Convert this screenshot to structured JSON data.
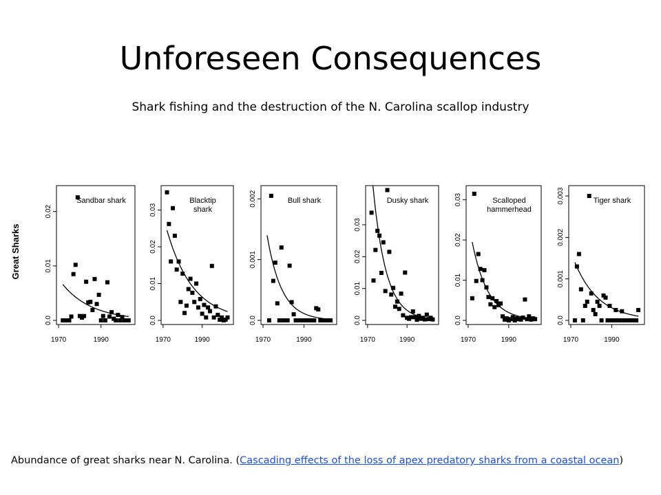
{
  "slide": {
    "title": "Unforeseen Consequences",
    "subtitle": "Shark fishing and the destruction of the N. Carolina scallop industry"
  },
  "caption": {
    "text": "Abundance of great sharks near N. Carolina. (",
    "link_text": "Cascading effects of the loss of apex predatory sharks from a coastal ocean",
    "close": ")"
  },
  "colors": {
    "link": "#1f4fd6",
    "points": "#000000"
  },
  "chart_data": {
    "type": "scatter",
    "ylabel": "Great Sharks",
    "x_ticks": [
      1970,
      1990
    ],
    "xlim": [
      1969,
      2006
    ],
    "panels": [
      {
        "name": "Sandbar shark",
        "name_lines": [
          "Sandbar shark"
        ],
        "ylim": [
          0,
          0.024
        ],
        "y_ticks": [
          0.0,
          0.01,
          0.02
        ],
        "y_tick_labels": [
          "0.0",
          "0.01",
          "0.02"
        ],
        "x": [
          1972,
          1973,
          1974,
          1975,
          1976,
          1977,
          1978,
          1979,
          1980,
          1981,
          1982,
          1983,
          1984,
          1985,
          1986,
          1987,
          1988,
          1989,
          1990,
          1991,
          1992,
          1993,
          1994,
          1995,
          1996,
          1997,
          1998,
          1999,
          2000,
          2001,
          2002,
          2003
        ],
        "y": [
          0.0,
          0.0,
          0.0,
          0.0,
          0.0007,
          0.0085,
          0.0102,
          0.0226,
          0.0008,
          0.0005,
          0.0008,
          0.0071,
          0.0033,
          0.0034,
          0.0019,
          0.0076,
          0.003,
          0.0047,
          0.0,
          0.0008,
          0.0,
          0.007,
          0.0007,
          0.0015,
          0.0003,
          0.0,
          0.001,
          0.0,
          0.0006,
          0.0,
          0.0,
          0.0
        ],
        "fit": {
          "a": 0.0066,
          "b": 0.072
        }
      },
      {
        "name": "Blacktip shark",
        "name_lines": [
          "Blacktip",
          "shark"
        ],
        "ylim": [
          0,
          0.0355
        ],
        "y_ticks": [
          0.0,
          0.01,
          0.02,
          0.03
        ],
        "y_tick_labels": [
          "0.0",
          "0.01",
          "0.02",
          "0.03"
        ],
        "x": [
          1972,
          1973,
          1974,
          1975,
          1976,
          1977,
          1978,
          1979,
          1980,
          1981,
          1982,
          1983,
          1984,
          1985,
          1986,
          1987,
          1988,
          1989,
          1990,
          1991,
          1992,
          1993,
          1994,
          1995,
          1996,
          1997,
          1998,
          1999,
          2000,
          2001,
          2002,
          2003
        ],
        "y": [
          0.0348,
          0.0262,
          0.016,
          0.0305,
          0.023,
          0.0138,
          0.016,
          0.005,
          0.0127,
          0.002,
          0.004,
          0.0085,
          0.0113,
          0.0075,
          0.005,
          0.01,
          0.0035,
          0.0058,
          0.0018,
          0.0042,
          0.0008,
          0.0035,
          0.0025,
          0.0148,
          0.0008,
          0.0038,
          0.0015,
          0.0002,
          0.0008,
          0.0,
          0.0002,
          0.0008
        ],
        "fit": {
          "a": 0.0245,
          "b": 0.075
        }
      },
      {
        "name": "Bull shark",
        "name_lines": [
          "Bull shark"
        ],
        "ylim": [
          0,
          0.00215
        ],
        "y_ticks": [
          0.0,
          0.001,
          0.002
        ],
        "y_tick_labels": [
          "0.0",
          "0.001",
          "0.002"
        ],
        "x": [
          1973,
          1974,
          1975,
          1976,
          1977,
          1978,
          1979,
          1980,
          1981,
          1982,
          1983,
          1984,
          1985,
          1986,
          1987,
          1988,
          1989,
          1990,
          1991,
          1992,
          1993,
          1994,
          1995,
          1996,
          1997,
          1998,
          1999,
          2000,
          2001,
          2002,
          2003
        ],
        "y": [
          0.0,
          0.00205,
          0.00065,
          0.00095,
          0.00028,
          0.0,
          0.0012,
          0.0,
          0.0,
          0.0,
          0.0009,
          0.0003,
          0.0001,
          0.0,
          0.0,
          0.0,
          0.0,
          0.0,
          0.0,
          0.0,
          0.0,
          0.0,
          0.0,
          0.0002,
          0.00018,
          0.0,
          0.0,
          0.0,
          0.0,
          0.0,
          0.0
        ],
        "fit": {
          "a": 0.0014,
          "b": 0.14
        }
      },
      {
        "name": "Dusky shark",
        "name_lines": [
          "Dusky shark"
        ],
        "ylim": [
          0,
          0.041
        ],
        "y_ticks": [
          0.0,
          0.01,
          0.02,
          0.03
        ],
        "y_tick_labels": [
          "0.0",
          "0.01",
          "0.02",
          "0.03"
        ],
        "x": [
          1972,
          1973,
          1974,
          1975,
          1976,
          1977,
          1978,
          1979,
          1980,
          1981,
          1982,
          1983,
          1984,
          1985,
          1986,
          1987,
          1988,
          1989,
          1990,
          1991,
          1992,
          1993,
          1994,
          1995,
          1996,
          1997,
          1998,
          1999,
          2000,
          2001,
          2002,
          2003
        ],
        "y": [
          0.0338,
          0.0125,
          0.0221,
          0.0281,
          0.0266,
          0.0149,
          0.0245,
          0.0092,
          0.0409,
          0.0215,
          0.0081,
          0.0102,
          0.0043,
          0.0059,
          0.0036,
          0.0084,
          0.0016,
          0.015,
          0.0008,
          0.0005,
          0.001,
          0.0028,
          0.001,
          0.0002,
          0.0014,
          0.0005,
          0.0008,
          0.0003,
          0.0018,
          0.0004,
          0.0008,
          0.0003
        ],
        "fit": {
          "a": 0.047,
          "b": 0.15
        }
      },
      {
        "name": "Scalloped hammerhead",
        "name_lines": [
          "Scalloped",
          "hammerhead"
        ],
        "ylim": [
          0,
          0.0325
        ],
        "y_ticks": [
          0.0,
          0.01,
          0.02,
          0.03
        ],
        "y_tick_labels": [
          "0.0",
          "0.01",
          "0.02",
          "0.03"
        ],
        "x": [
          1972,
          1973,
          1974,
          1975,
          1976,
          1977,
          1978,
          1979,
          1980,
          1981,
          1982,
          1983,
          1984,
          1985,
          1986,
          1987,
          1988,
          1989,
          1990,
          1991,
          1992,
          1993,
          1994,
          1995,
          1996,
          1997,
          1998,
          1999,
          2000,
          2001,
          2002,
          2003
        ],
        "y": [
          0.0055,
          0.0315,
          0.0098,
          0.0165,
          0.0128,
          0.01,
          0.0125,
          0.0082,
          0.0058,
          0.004,
          0.0055,
          0.0033,
          0.0048,
          0.0038,
          0.0042,
          0.001,
          0.0002,
          0.0005,
          0.0,
          0.0003,
          0.0008,
          0.0,
          0.0005,
          0.0003,
          0.0002,
          0.0007,
          0.0052,
          0.0003,
          0.001,
          0.0002,
          0.0005,
          0.0003
        ],
        "fit": {
          "a": 0.0195,
          "b": 0.128
        }
      },
      {
        "name": "Tiger shark",
        "name_lines": [
          "Tiger shark"
        ],
        "ylim": [
          0,
          0.00315
        ],
        "y_ticks": [
          0.0,
          0.001,
          0.002,
          0.003
        ],
        "y_tick_labels": [
          "0.0",
          "0.001",
          "0.002",
          "0.003"
        ],
        "x": [
          1972,
          1973,
          1974,
          1975,
          1976,
          1977,
          1978,
          1979,
          1980,
          1981,
          1982,
          1983,
          1984,
          1985,
          1986,
          1987,
          1988,
          1989,
          1990,
          1991,
          1992,
          1993,
          1994,
          1995,
          1996,
          1997,
          1998,
          1999,
          2000,
          2001,
          2002,
          2003
        ],
        "y": [
          0.0,
          0.0013,
          0.0016,
          0.00075,
          0.0,
          0.00035,
          0.00045,
          0.003,
          0.00065,
          0.00025,
          0.00015,
          0.00045,
          0.00035,
          0.0,
          0.0006,
          0.00055,
          0.0,
          0.00035,
          0.0,
          0.0,
          0.00025,
          0.0,
          0.0,
          0.00022,
          0.0,
          0.0,
          0.0,
          0.0,
          0.0,
          0.0,
          0.0,
          0.00025
        ],
        "fit": {
          "a": 0.0014,
          "b": 0.085
        }
      }
    ]
  }
}
